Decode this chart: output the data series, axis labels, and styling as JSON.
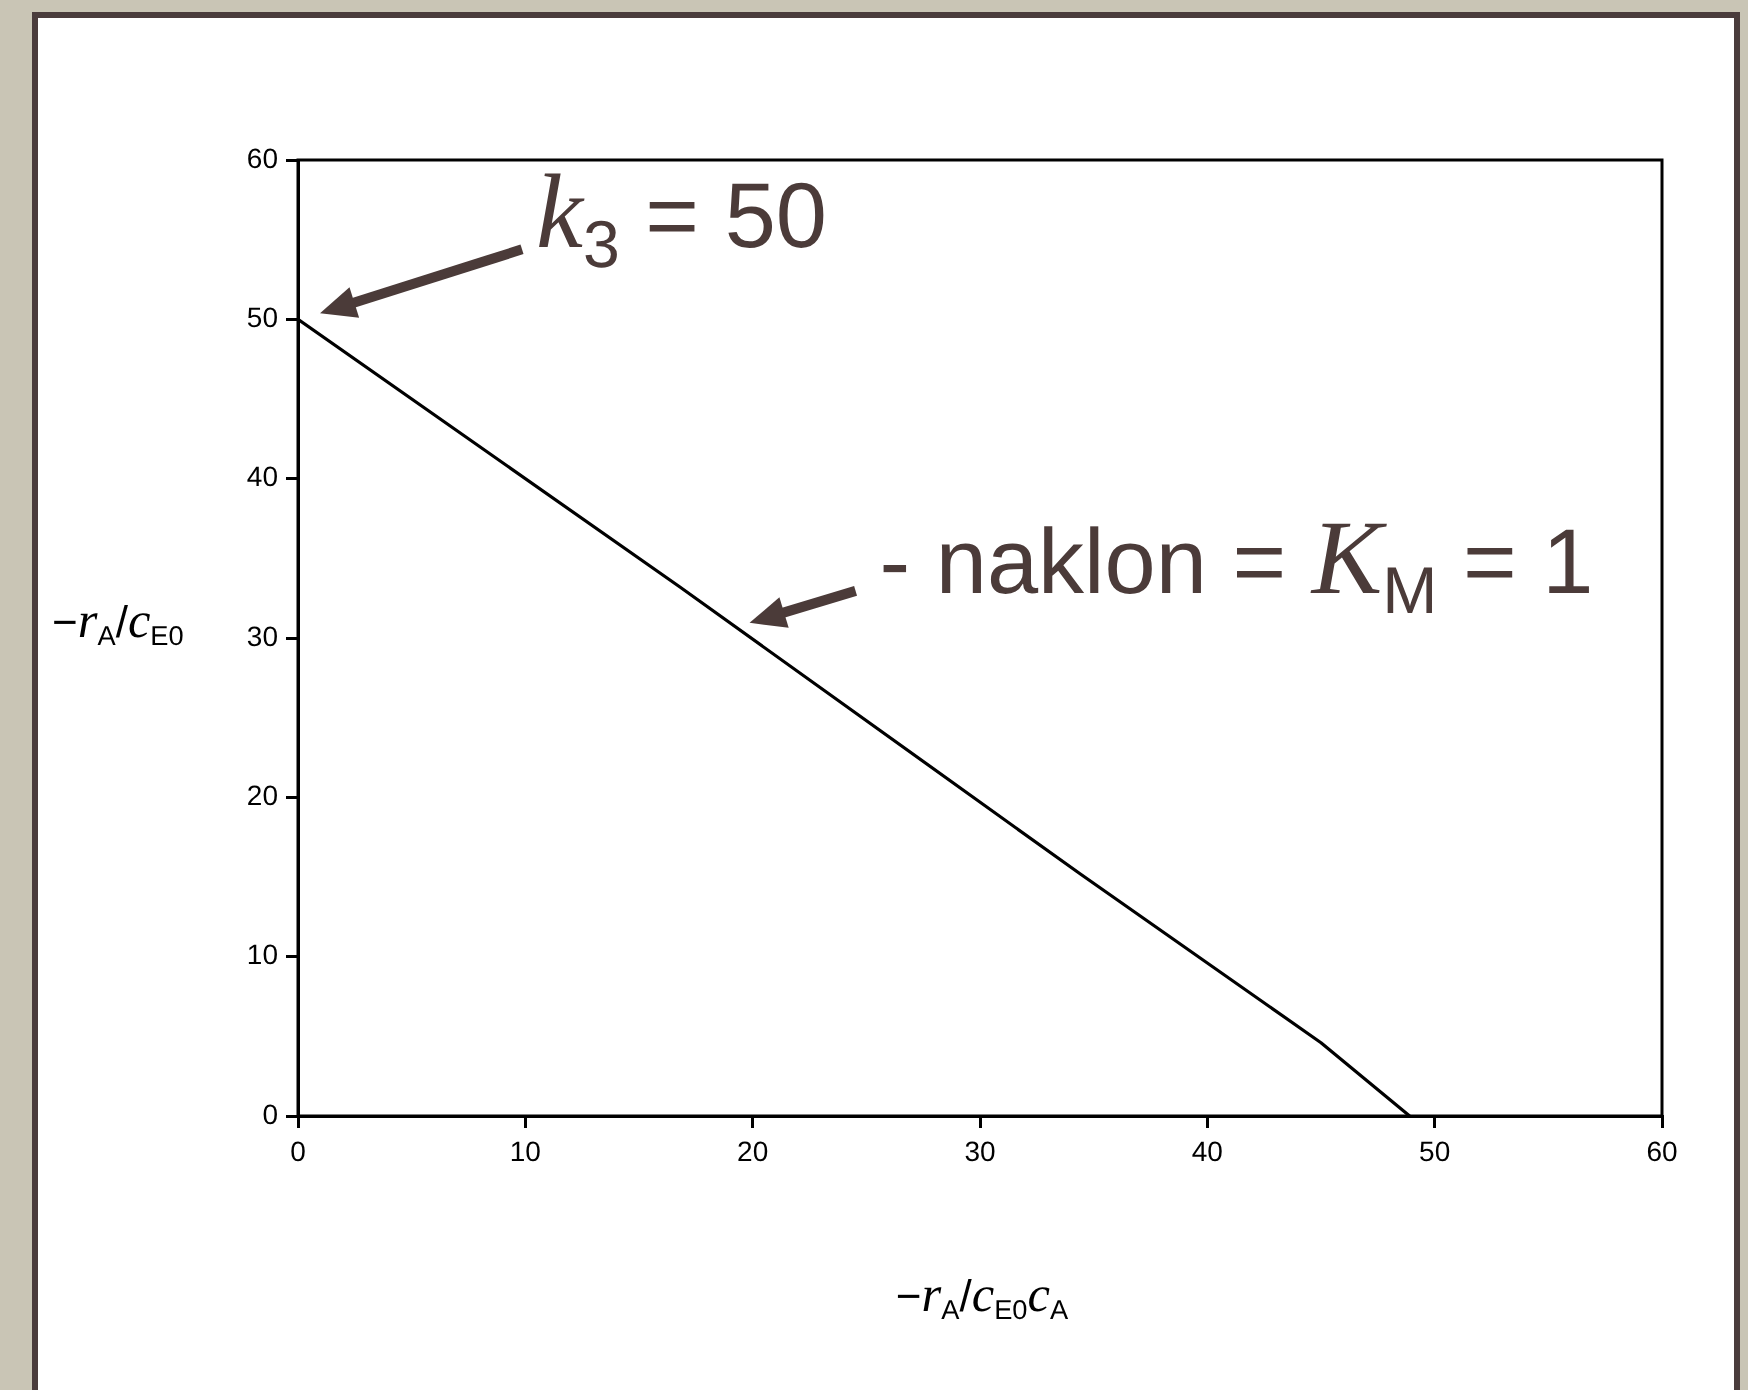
{
  "chart_data": {
    "type": "line",
    "x": [
      0,
      16.8,
      34.4,
      45,
      48.9
    ],
    "values": [
      50,
      33.2,
      15.2,
      4.6,
      0
    ],
    "color": "#000000",
    "xlim": [
      0,
      60
    ],
    "ylim": [
      0,
      60
    ],
    "xticks": [
      0,
      10,
      20,
      30,
      40,
      50,
      60
    ],
    "yticks": [
      0,
      10,
      20,
      30,
      40,
      50,
      60
    ],
    "xlabel": "−r$_{A}$/c$_{E0}$c$_{A}$",
    "ylabel": "−r$_{A}$/c$_{E0}$",
    "annotations": [
      {
        "text": "k$_{3}$ = 50",
        "x": 0,
        "y": 50
      },
      {
        "text": "- naklon = K$_{M}$ = 1",
        "x": 19.6,
        "y": 30.7
      }
    ],
    "marker": "none",
    "grid": false
  }
}
